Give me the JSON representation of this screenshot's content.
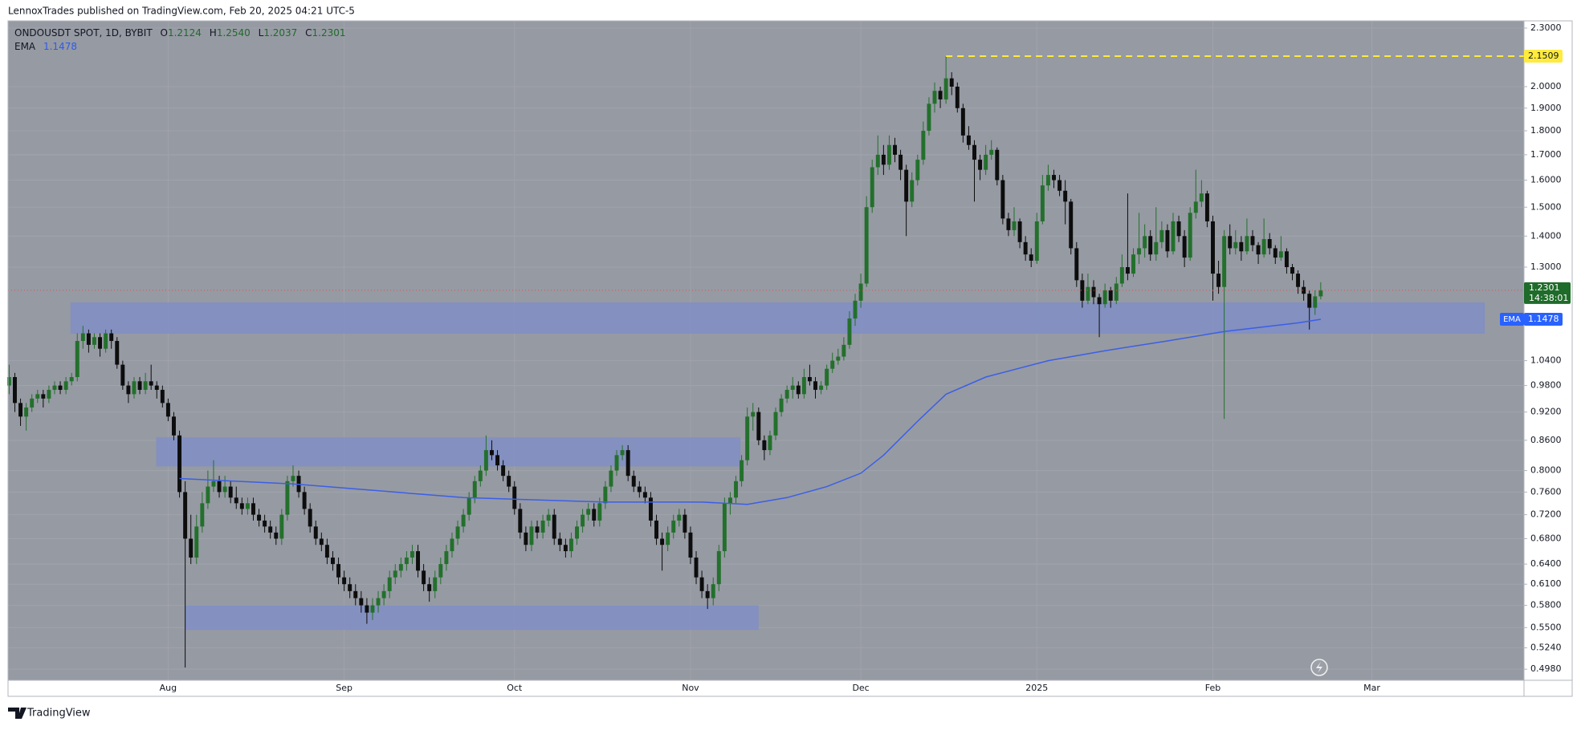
{
  "header": {
    "published": "LennoxTrades published on TradingView.com, Feb 20, 2025 04:21 UTC-5"
  },
  "footer": {
    "brand": "TradingView"
  },
  "chart_data": {
    "type": "candlestick",
    "symbol": "ONDOUSDT SPOT, 1D, BYBIT",
    "ohlc_letters": [
      "O",
      "H",
      "L",
      "C"
    ],
    "ohlc_value_labels": [
      "1.2124",
      "1.2540",
      "1.2037",
      "1.2301"
    ],
    "countdown": "14:38:01",
    "colors": {
      "up": "#23702c",
      "down": "#0d0d0d",
      "zone": "#7c8cc9",
      "price_line": "#e05050"
    },
    "open": [
      0.98,
      1.0,
      0.94,
      0.91,
      0.93,
      0.95,
      0.96,
      0.95,
      0.97,
      0.98,
      0.97,
      0.99,
      1.0,
      1.09,
      1.11,
      1.08,
      1.1,
      1.07,
      1.11,
      1.09,
      1.03,
      0.98,
      0.96,
      0.99,
      0.97,
      0.99,
      0.98,
      0.97,
      0.94,
      0.91,
      0.87,
      0.76,
      0.68,
      0.65,
      0.7,
      0.74,
      0.77,
      0.78,
      0.76,
      0.77,
      0.75,
      0.74,
      0.73,
      0.74,
      0.72,
      0.71,
      0.7,
      0.69,
      0.68,
      0.72,
      0.78,
      0.79,
      0.76,
      0.73,
      0.7,
      0.68,
      0.67,
      0.65,
      0.64,
      0.62,
      0.61,
      0.6,
      0.59,
      0.58,
      0.57,
      0.58,
      0.59,
      0.6,
      0.62,
      0.63,
      0.64,
      0.65,
      0.66,
      0.63,
      0.61,
      0.6,
      0.62,
      0.64,
      0.66,
      0.68,
      0.7,
      0.72,
      0.75,
      0.78,
      0.8,
      0.84,
      0.83,
      0.81,
      0.79,
      0.77,
      0.73,
      0.69,
      0.67,
      0.7,
      0.69,
      0.71,
      0.72,
      0.68,
      0.67,
      0.66,
      0.68,
      0.7,
      0.72,
      0.73,
      0.71,
      0.74,
      0.77,
      0.8,
      0.83,
      0.84,
      0.79,
      0.77,
      0.76,
      0.75,
      0.71,
      0.68,
      0.67,
      0.69,
      0.71,
      0.72,
      0.69,
      0.65,
      0.62,
      0.6,
      0.59,
      0.61,
      0.66,
      0.74,
      0.75,
      0.78,
      0.82,
      0.91,
      0.92,
      0.86,
      0.84,
      0.87,
      0.92,
      0.95,
      0.97,
      0.98,
      0.96,
      1.0,
      0.99,
      0.97,
      0.98,
      1.02,
      1.04,
      1.05,
      1.08,
      1.15,
      1.2,
      1.25,
      1.5,
      1.65,
      1.7,
      1.66,
      1.74,
      1.7,
      1.64,
      1.52,
      1.6,
      1.68,
      1.8,
      1.92,
      1.98,
      1.94,
      2.04,
      2.0,
      1.9,
      1.78,
      1.74,
      1.68,
      1.64,
      1.7,
      1.72,
      1.6,
      1.46,
      1.42,
      1.45,
      1.38,
      1.34,
      1.32,
      1.45,
      1.58,
      1.62,
      1.6,
      1.56,
      1.52,
      1.36,
      1.26,
      1.2,
      1.24,
      1.21,
      1.19,
      1.23,
      1.2,
      1.25,
      1.3,
      1.28,
      1.34,
      1.36,
      1.4,
      1.34,
      1.38,
      1.42,
      1.35,
      1.45,
      1.4,
      1.33,
      1.48,
      1.52,
      1.55,
      1.45,
      1.28,
      1.24,
      1.4,
      1.36,
      1.38,
      1.35,
      1.4,
      1.37,
      1.34,
      1.39,
      1.36,
      1.33,
      1.35,
      1.3,
      1.28,
      1.24,
      1.22,
      1.18,
      1.2124
    ],
    "high": [
      1.03,
      1.01,
      0.95,
      0.94,
      0.96,
      0.97,
      0.97,
      0.98,
      0.99,
      0.99,
      1.0,
      1.01,
      1.11,
      1.13,
      1.12,
      1.11,
      1.11,
      1.12,
      1.12,
      1.1,
      1.04,
      0.99,
      1.0,
      1.0,
      1.01,
      1.03,
      0.99,
      0.98,
      0.95,
      0.92,
      0.88,
      0.78,
      0.72,
      0.72,
      0.76,
      0.8,
      0.82,
      0.79,
      0.79,
      0.78,
      0.77,
      0.75,
      0.75,
      0.75,
      0.73,
      0.72,
      0.71,
      0.7,
      0.73,
      0.79,
      0.81,
      0.8,
      0.77,
      0.74,
      0.71,
      0.69,
      0.68,
      0.66,
      0.65,
      0.63,
      0.62,
      0.61,
      0.6,
      0.59,
      0.59,
      0.6,
      0.61,
      0.63,
      0.64,
      0.65,
      0.66,
      0.67,
      0.67,
      0.64,
      0.62,
      0.63,
      0.65,
      0.67,
      0.69,
      0.71,
      0.73,
      0.76,
      0.79,
      0.81,
      0.87,
      0.86,
      0.84,
      0.82,
      0.8,
      0.78,
      0.74,
      0.7,
      0.71,
      0.71,
      0.72,
      0.73,
      0.73,
      0.69,
      0.68,
      0.69,
      0.71,
      0.73,
      0.74,
      0.74,
      0.75,
      0.78,
      0.81,
      0.84,
      0.85,
      0.85,
      0.8,
      0.78,
      0.77,
      0.76,
      0.72,
      0.69,
      0.7,
      0.72,
      0.73,
      0.73,
      0.7,
      0.66,
      0.63,
      0.61,
      0.62,
      0.67,
      0.75,
      0.76,
      0.79,
      0.83,
      0.93,
      0.94,
      0.93,
      0.87,
      0.88,
      0.93,
      0.96,
      0.98,
      1.0,
      0.99,
      1.02,
      1.03,
      1.0,
      0.99,
      1.03,
      1.06,
      1.07,
      1.1,
      1.17,
      1.22,
      1.28,
      1.54,
      1.68,
      1.78,
      1.74,
      1.78,
      1.77,
      1.72,
      1.66,
      1.63,
      1.7,
      1.84,
      1.95,
      2.02,
      2.0,
      2.15,
      2.07,
      2.02,
      1.92,
      1.82,
      1.76,
      1.7,
      1.74,
      1.76,
      1.73,
      1.62,
      1.48,
      1.5,
      1.46,
      1.4,
      1.36,
      1.48,
      1.62,
      1.66,
      1.64,
      1.62,
      1.6,
      1.53,
      1.38,
      1.28,
      1.28,
      1.26,
      1.22,
      1.25,
      1.24,
      1.27,
      1.34,
      1.55,
      1.36,
      1.48,
      1.44,
      1.42,
      1.5,
      1.45,
      1.44,
      1.48,
      1.47,
      1.42,
      1.5,
      1.64,
      1.6,
      1.56,
      1.47,
      1.32,
      1.42,
      1.44,
      1.42,
      1.4,
      1.46,
      1.42,
      1.38,
      1.46,
      1.41,
      1.37,
      1.4,
      1.36,
      1.31,
      1.29,
      1.26,
      1.23,
      1.23,
      1.254
    ],
    "low": [
      0.96,
      0.92,
      0.89,
      0.88,
      0.92,
      0.94,
      0.93,
      0.94,
      0.96,
      0.96,
      0.96,
      0.98,
      0.99,
      1.07,
      1.06,
      1.07,
      1.05,
      1.06,
      1.07,
      1.02,
      0.97,
      0.94,
      0.95,
      0.96,
      0.96,
      0.97,
      0.95,
      0.93,
      0.9,
      0.86,
      0.75,
      0.5,
      0.64,
      0.64,
      0.69,
      0.73,
      0.76,
      0.75,
      0.75,
      0.74,
      0.73,
      0.72,
      0.72,
      0.71,
      0.7,
      0.69,
      0.68,
      0.67,
      0.67,
      0.71,
      0.77,
      0.75,
      0.72,
      0.69,
      0.67,
      0.66,
      0.64,
      0.63,
      0.61,
      0.6,
      0.59,
      0.58,
      0.57,
      0.555,
      0.56,
      0.57,
      0.58,
      0.59,
      0.61,
      0.62,
      0.63,
      0.64,
      0.62,
      0.6,
      0.585,
      0.59,
      0.61,
      0.63,
      0.65,
      0.67,
      0.69,
      0.71,
      0.74,
      0.77,
      0.79,
      0.82,
      0.8,
      0.78,
      0.76,
      0.72,
      0.68,
      0.66,
      0.66,
      0.68,
      0.68,
      0.7,
      0.67,
      0.66,
      0.65,
      0.65,
      0.67,
      0.69,
      0.71,
      0.7,
      0.7,
      0.73,
      0.76,
      0.79,
      0.82,
      0.78,
      0.76,
      0.75,
      0.74,
      0.7,
      0.67,
      0.63,
      0.66,
      0.68,
      0.7,
      0.68,
      0.64,
      0.61,
      0.59,
      0.575,
      0.58,
      0.6,
      0.65,
      0.72,
      0.74,
      0.77,
      0.81,
      0.88,
      0.85,
      0.82,
      0.83,
      0.86,
      0.91,
      0.94,
      0.95,
      0.95,
      0.95,
      0.98,
      0.95,
      0.96,
      0.97,
      1.01,
      1.03,
      1.04,
      1.07,
      1.13,
      1.18,
      1.24,
      1.48,
      1.62,
      1.62,
      1.64,
      1.67,
      1.6,
      1.4,
      1.5,
      1.58,
      1.66,
      1.78,
      1.88,
      1.9,
      1.92,
      1.96,
      1.88,
      1.75,
      1.72,
      1.52,
      1.6,
      1.62,
      1.68,
      1.58,
      1.44,
      1.4,
      1.4,
      1.36,
      1.32,
      1.3,
      1.31,
      1.44,
      1.56,
      1.57,
      1.54,
      1.44,
      1.34,
      1.24,
      1.18,
      1.19,
      1.19,
      1.1,
      1.18,
      1.18,
      1.19,
      1.24,
      1.26,
      1.27,
      1.31,
      1.33,
      1.32,
      1.32,
      1.36,
      1.33,
      1.34,
      1.38,
      1.3,
      1.32,
      1.46,
      1.5,
      1.43,
      1.2,
      1.22,
      0.905,
      1.34,
      1.34,
      1.32,
      1.34,
      1.35,
      1.31,
      1.33,
      1.34,
      1.31,
      1.32,
      1.28,
      1.26,
      1.22,
      1.2,
      1.12,
      1.16,
      1.2037
    ],
    "close": [
      1.0,
      0.94,
      0.91,
      0.93,
      0.95,
      0.96,
      0.95,
      0.97,
      0.98,
      0.97,
      0.99,
      1.0,
      1.09,
      1.11,
      1.08,
      1.1,
      1.07,
      1.11,
      1.09,
      1.03,
      0.98,
      0.96,
      0.99,
      0.97,
      0.99,
      0.98,
      0.97,
      0.94,
      0.91,
      0.87,
      0.76,
      0.68,
      0.65,
      0.7,
      0.74,
      0.77,
      0.78,
      0.76,
      0.77,
      0.75,
      0.74,
      0.73,
      0.74,
      0.72,
      0.71,
      0.7,
      0.69,
      0.68,
      0.72,
      0.78,
      0.79,
      0.76,
      0.73,
      0.7,
      0.68,
      0.67,
      0.65,
      0.64,
      0.62,
      0.61,
      0.6,
      0.59,
      0.58,
      0.57,
      0.58,
      0.59,
      0.6,
      0.62,
      0.63,
      0.64,
      0.65,
      0.66,
      0.63,
      0.61,
      0.6,
      0.62,
      0.64,
      0.66,
      0.68,
      0.7,
      0.72,
      0.75,
      0.78,
      0.8,
      0.84,
      0.83,
      0.81,
      0.79,
      0.77,
      0.73,
      0.69,
      0.67,
      0.7,
      0.69,
      0.71,
      0.72,
      0.68,
      0.67,
      0.66,
      0.68,
      0.7,
      0.72,
      0.73,
      0.71,
      0.74,
      0.77,
      0.8,
      0.83,
      0.84,
      0.79,
      0.77,
      0.76,
      0.75,
      0.71,
      0.68,
      0.67,
      0.69,
      0.71,
      0.72,
      0.69,
      0.65,
      0.62,
      0.6,
      0.59,
      0.61,
      0.66,
      0.74,
      0.75,
      0.78,
      0.82,
      0.91,
      0.92,
      0.86,
      0.84,
      0.87,
      0.92,
      0.95,
      0.97,
      0.98,
      0.96,
      1.0,
      0.99,
      0.97,
      0.98,
      1.02,
      1.04,
      1.05,
      1.08,
      1.15,
      1.2,
      1.25,
      1.5,
      1.65,
      1.7,
      1.66,
      1.74,
      1.7,
      1.64,
      1.52,
      1.6,
      1.68,
      1.8,
      1.92,
      1.98,
      1.94,
      2.04,
      2.0,
      1.9,
      1.78,
      1.74,
      1.68,
      1.64,
      1.7,
      1.72,
      1.6,
      1.46,
      1.42,
      1.45,
      1.38,
      1.34,
      1.32,
      1.45,
      1.58,
      1.62,
      1.6,
      1.56,
      1.52,
      1.36,
      1.26,
      1.2,
      1.24,
      1.21,
      1.19,
      1.23,
      1.2,
      1.25,
      1.3,
      1.28,
      1.34,
      1.36,
      1.4,
      1.34,
      1.38,
      1.42,
      1.35,
      1.45,
      1.4,
      1.33,
      1.48,
      1.52,
      1.55,
      1.45,
      1.28,
      1.24,
      1.4,
      1.36,
      1.38,
      1.35,
      1.4,
      1.37,
      1.34,
      1.39,
      1.36,
      1.33,
      1.35,
      1.3,
      1.28,
      1.24,
      1.22,
      1.18,
      1.2124,
      1.2301
    ],
    "ema": {
      "name": "EMA",
      "color": "#3b5fe6",
      "x": [
        30,
        50,
        80,
        105,
        122,
        130,
        137,
        144,
        150,
        154,
        160,
        165,
        172,
        183,
        193,
        204,
        214,
        227,
        231
      ],
      "values": [
        0.785,
        0.775,
        0.75,
        0.742,
        0.742,
        0.738,
        0.75,
        0.77,
        0.795,
        0.83,
        0.9,
        0.96,
        1.0,
        1.04,
        1.065,
        1.09,
        1.115,
        1.138,
        1.1478
      ]
    },
    "zones": [
      {
        "x": [
          10.8,
          259.9
        ],
        "y": [
          1.109,
          1.195
        ]
      },
      {
        "x": [
          25.9,
          128.8
        ],
        "y": [
          0.808,
          0.866
        ]
      },
      {
        "x": [
          31,
          132
        ],
        "y": [
          0.547,
          0.58
        ]
      }
    ],
    "level": {
      "value": 2.1509,
      "x_start": 165,
      "color": "#ffeb3b"
    },
    "log_scale": true,
    "grid": true,
    "xlim": [
      -0.2,
      266.8
    ],
    "ylim": [
      0.485,
      2.34
    ],
    "xticks": [
      {
        "value": 28,
        "label": "Aug"
      },
      {
        "value": 59,
        "label": "Sep"
      },
      {
        "value": 89,
        "label": "Oct"
      },
      {
        "value": 120,
        "label": "Nov"
      },
      {
        "value": 150,
        "label": "Dec"
      },
      {
        "value": 181,
        "label": "2025"
      },
      {
        "value": 212,
        "label": "Feb"
      },
      {
        "value": 240,
        "label": "Mar"
      }
    ],
    "yticks": [
      {
        "value": 2.3,
        "label": "2.3000"
      },
      {
        "value": 2.0,
        "label": "2.0000"
      },
      {
        "value": 1.9,
        "label": "1.9000"
      },
      {
        "value": 1.8,
        "label": "1.8000"
      },
      {
        "value": 1.7,
        "label": "1.7000"
      },
      {
        "value": 1.6,
        "label": "1.6000"
      },
      {
        "value": 1.5,
        "label": "1.5000"
      },
      {
        "value": 1.4,
        "label": "1.4000"
      },
      {
        "value": 1.3,
        "label": "1.3000"
      },
      {
        "value": 1.04,
        "label": "1.0400"
      },
      {
        "value": 0.98,
        "label": "0.9800"
      },
      {
        "value": 0.92,
        "label": "0.9200"
      },
      {
        "value": 0.86,
        "label": "0.8600"
      },
      {
        "value": 0.8,
        "label": "0.8000"
      },
      {
        "value": 0.76,
        "label": "0.7600"
      },
      {
        "value": 0.72,
        "label": "0.7200"
      },
      {
        "value": 0.68,
        "label": "0.6800"
      },
      {
        "value": 0.64,
        "label": "0.6400"
      },
      {
        "value": 0.61,
        "label": "0.6100"
      },
      {
        "value": 0.58,
        "label": "0.5800"
      },
      {
        "value": 0.55,
        "label": "0.5500"
      },
      {
        "value": 0.524,
        "label": "0.5240"
      },
      {
        "value": 0.498,
        "label": "0.4980"
      }
    ]
  }
}
